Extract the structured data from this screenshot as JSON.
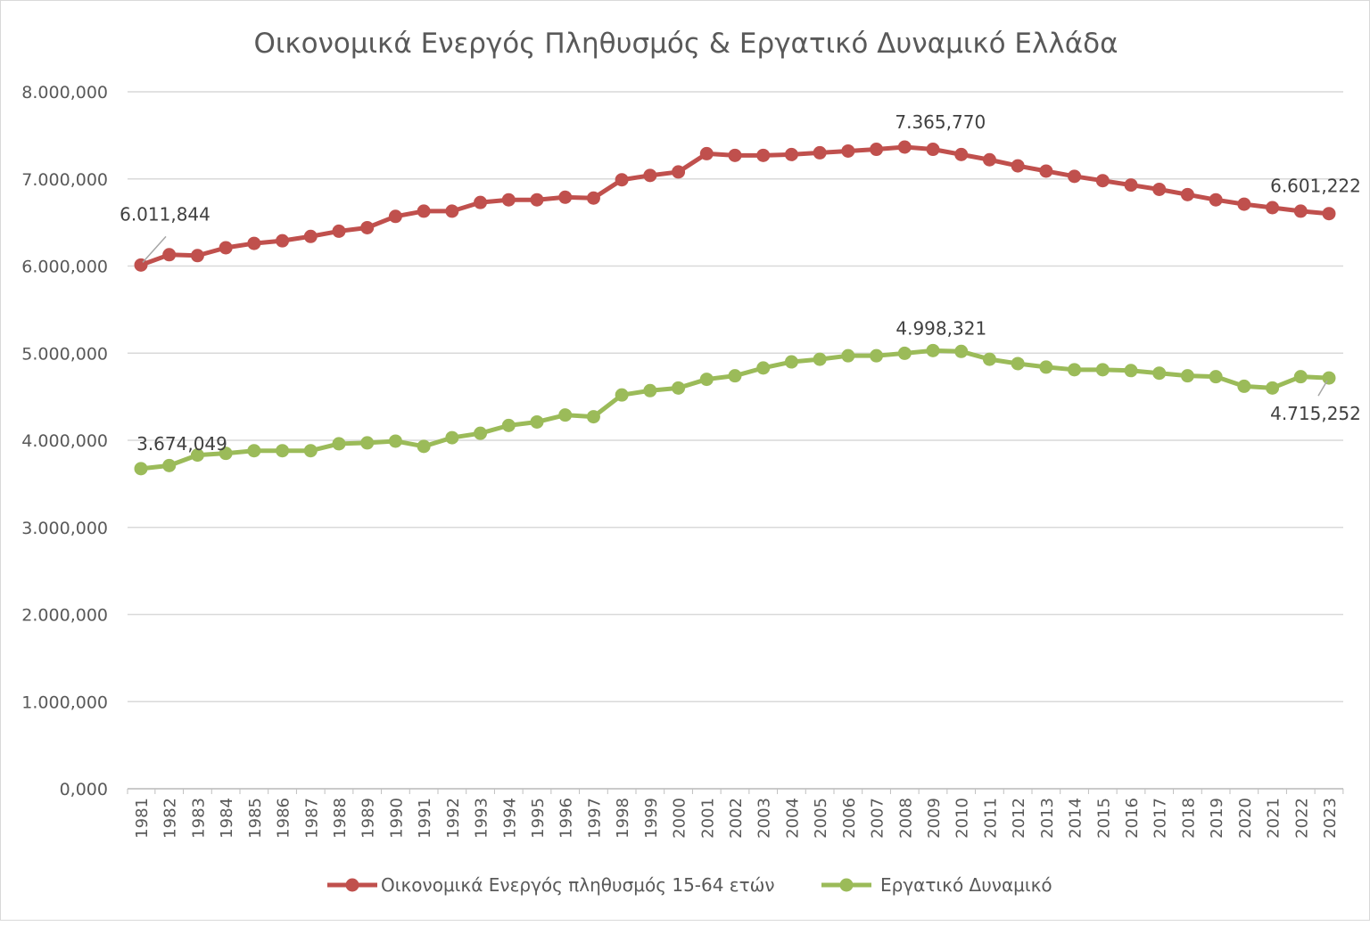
{
  "chart_data": {
    "type": "line",
    "title": "Οικονομικά Ενεργός Πληθυσμός & Εργατικό Δυναμικό Ελλάδα",
    "xlabel": "",
    "ylabel": "",
    "ylim": [
      0,
      8000000
    ],
    "y_ticks": [
      "0,000",
      "1.000,000",
      "2.000,000",
      "3.000,000",
      "4.000,000",
      "5.000,000",
      "6.000,000",
      "7.000,000",
      "8.000,000"
    ],
    "grid": true,
    "legend_position": "bottom",
    "categories": [
      "1981",
      "1982",
      "1983",
      "1984",
      "1985",
      "1986",
      "1987",
      "1988",
      "1989",
      "1990",
      "1991",
      "1992",
      "1993",
      "1994",
      "1995",
      "1996",
      "1997",
      "1998",
      "1999",
      "2000",
      "2001",
      "2002",
      "2003",
      "2004",
      "2005",
      "2006",
      "2007",
      "2008",
      "2009",
      "2010",
      "2011",
      "2012",
      "2013",
      "2014",
      "2015",
      "2016",
      "2017",
      "2018",
      "2019",
      "2020",
      "2021",
      "2022",
      "2023"
    ],
    "series": [
      {
        "name": "Οικονομικά Ενεργός πληθυσμός 15-64 ετών",
        "color": "#c0504d",
        "values": [
          6011844,
          6130000,
          6120000,
          6210000,
          6260000,
          6290000,
          6340000,
          6400000,
          6440000,
          6570000,
          6630000,
          6630000,
          6730000,
          6760000,
          6760000,
          6790000,
          6780000,
          6990000,
          7040000,
          7080000,
          7290000,
          7270000,
          7270000,
          7280000,
          7300000,
          7320000,
          7340000,
          7365770,
          7340000,
          7280000,
          7220000,
          7150000,
          7090000,
          7030000,
          6980000,
          6930000,
          6880000,
          6820000,
          6760000,
          6710000,
          6670000,
          6630000,
          6601222
        ],
        "data_labels": [
          {
            "year": "1981",
            "text": "6.011,844"
          },
          {
            "year": "2008",
            "text": "7.365,770"
          },
          {
            "year": "2023",
            "text": "6.601,222"
          }
        ]
      },
      {
        "name": "Εργατικό Δυναμικό",
        "color": "#9bbb59",
        "values": [
          3674049,
          3710000,
          3830000,
          3850000,
          3880000,
          3880000,
          3880000,
          3960000,
          3970000,
          3990000,
          3930000,
          4030000,
          4080000,
          4170000,
          4210000,
          4290000,
          4270000,
          4520000,
          4570000,
          4600000,
          4700000,
          4740000,
          4830000,
          4900000,
          4930000,
          4970000,
          4970000,
          4998321,
          5030000,
          5020000,
          4930000,
          4880000,
          4840000,
          4810000,
          4810000,
          4800000,
          4770000,
          4740000,
          4730000,
          4620000,
          4600000,
          4730000,
          4715252
        ],
        "data_labels": [
          {
            "year": "1981",
            "text": "3.674,049"
          },
          {
            "year": "2008",
            "text": "4.998,321"
          },
          {
            "year": "2023",
            "text": "4.715,252"
          }
        ]
      }
    ]
  }
}
